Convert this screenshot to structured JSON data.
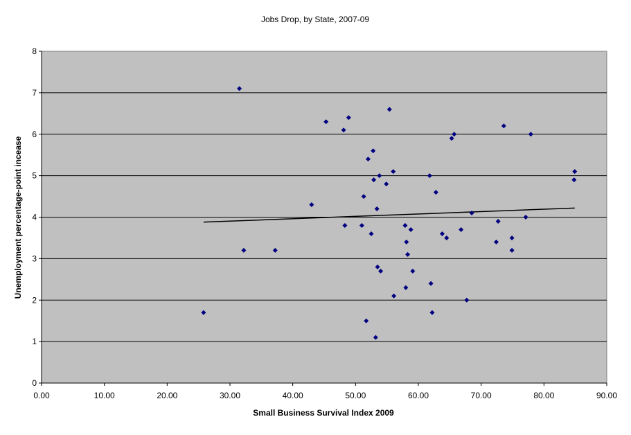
{
  "chart_data": {
    "type": "scatter",
    "title": "Jobs Drop, by State, 2007-09",
    "xlabel": "Small Business Survival Index 2009",
    "ylabel": "Unemployment percentage-point incease",
    "xlim": [
      0,
      90
    ],
    "ylim": [
      0,
      8
    ],
    "x_ticks": [
      "0.00",
      "10.00",
      "20.00",
      "30.00",
      "40.00",
      "50.00",
      "60.00",
      "70.00",
      "80.00",
      "90.00"
    ],
    "y_ticks": [
      "0",
      "1",
      "2",
      "3",
      "4",
      "5",
      "6",
      "7",
      "8"
    ],
    "grid": "horizontal",
    "legend": "none",
    "colors": {
      "plot_background": "#c0c0c0",
      "marker": "#000080",
      "trendline": "#000000",
      "gridline": "#000000"
    },
    "trendline": {
      "type": "linear",
      "x": [
        25.8,
        84.9
      ],
      "y": [
        3.88,
        4.22
      ]
    },
    "points": [
      {
        "x": 25.8,
        "y": 1.7
      },
      {
        "x": 31.5,
        "y": 7.1
      },
      {
        "x": 32.2,
        "y": 3.2
      },
      {
        "x": 37.2,
        "y": 3.2
      },
      {
        "x": 43.0,
        "y": 4.3
      },
      {
        "x": 45.3,
        "y": 6.3
      },
      {
        "x": 48.1,
        "y": 6.1
      },
      {
        "x": 48.3,
        "y": 3.8
      },
      {
        "x": 48.9,
        "y": 6.4
      },
      {
        "x": 51.0,
        "y": 3.8
      },
      {
        "x": 51.3,
        "y": 4.5
      },
      {
        "x": 51.7,
        "y": 1.5
      },
      {
        "x": 52.0,
        "y": 5.4
      },
      {
        "x": 52.5,
        "y": 3.6
      },
      {
        "x": 52.8,
        "y": 5.6
      },
      {
        "x": 52.9,
        "y": 4.9
      },
      {
        "x": 53.2,
        "y": 1.1
      },
      {
        "x": 53.4,
        "y": 4.2
      },
      {
        "x": 53.5,
        "y": 2.8
      },
      {
        "x": 53.8,
        "y": 5.0
      },
      {
        "x": 54.0,
        "y": 2.7
      },
      {
        "x": 54.9,
        "y": 4.8
      },
      {
        "x": 55.4,
        "y": 6.6
      },
      {
        "x": 56.0,
        "y": 5.1
      },
      {
        "x": 56.1,
        "y": 2.1
      },
      {
        "x": 57.9,
        "y": 3.8
      },
      {
        "x": 58.0,
        "y": 2.3
      },
      {
        "x": 58.1,
        "y": 3.4
      },
      {
        "x": 58.3,
        "y": 3.1
      },
      {
        "x": 58.8,
        "y": 3.7
      },
      {
        "x": 59.1,
        "y": 2.7
      },
      {
        "x": 61.8,
        "y": 5.0
      },
      {
        "x": 62.0,
        "y": 2.4
      },
      {
        "x": 62.2,
        "y": 1.7
      },
      {
        "x": 62.8,
        "y": 4.6
      },
      {
        "x": 63.8,
        "y": 3.6
      },
      {
        "x": 64.5,
        "y": 3.5
      },
      {
        "x": 65.3,
        "y": 5.9
      },
      {
        "x": 65.7,
        "y": 6.0
      },
      {
        "x": 66.8,
        "y": 3.7
      },
      {
        "x": 67.7,
        "y": 2.0
      },
      {
        "x": 68.5,
        "y": 4.1
      },
      {
        "x": 72.4,
        "y": 3.4
      },
      {
        "x": 72.7,
        "y": 3.9
      },
      {
        "x": 73.6,
        "y": 6.2
      },
      {
        "x": 74.9,
        "y": 3.5
      },
      {
        "x": 74.9,
        "y": 3.2
      },
      {
        "x": 77.1,
        "y": 4.0
      },
      {
        "x": 77.9,
        "y": 6.0
      },
      {
        "x": 84.9,
        "y": 5.1
      },
      {
        "x": 84.8,
        "y": 4.9
      }
    ]
  }
}
